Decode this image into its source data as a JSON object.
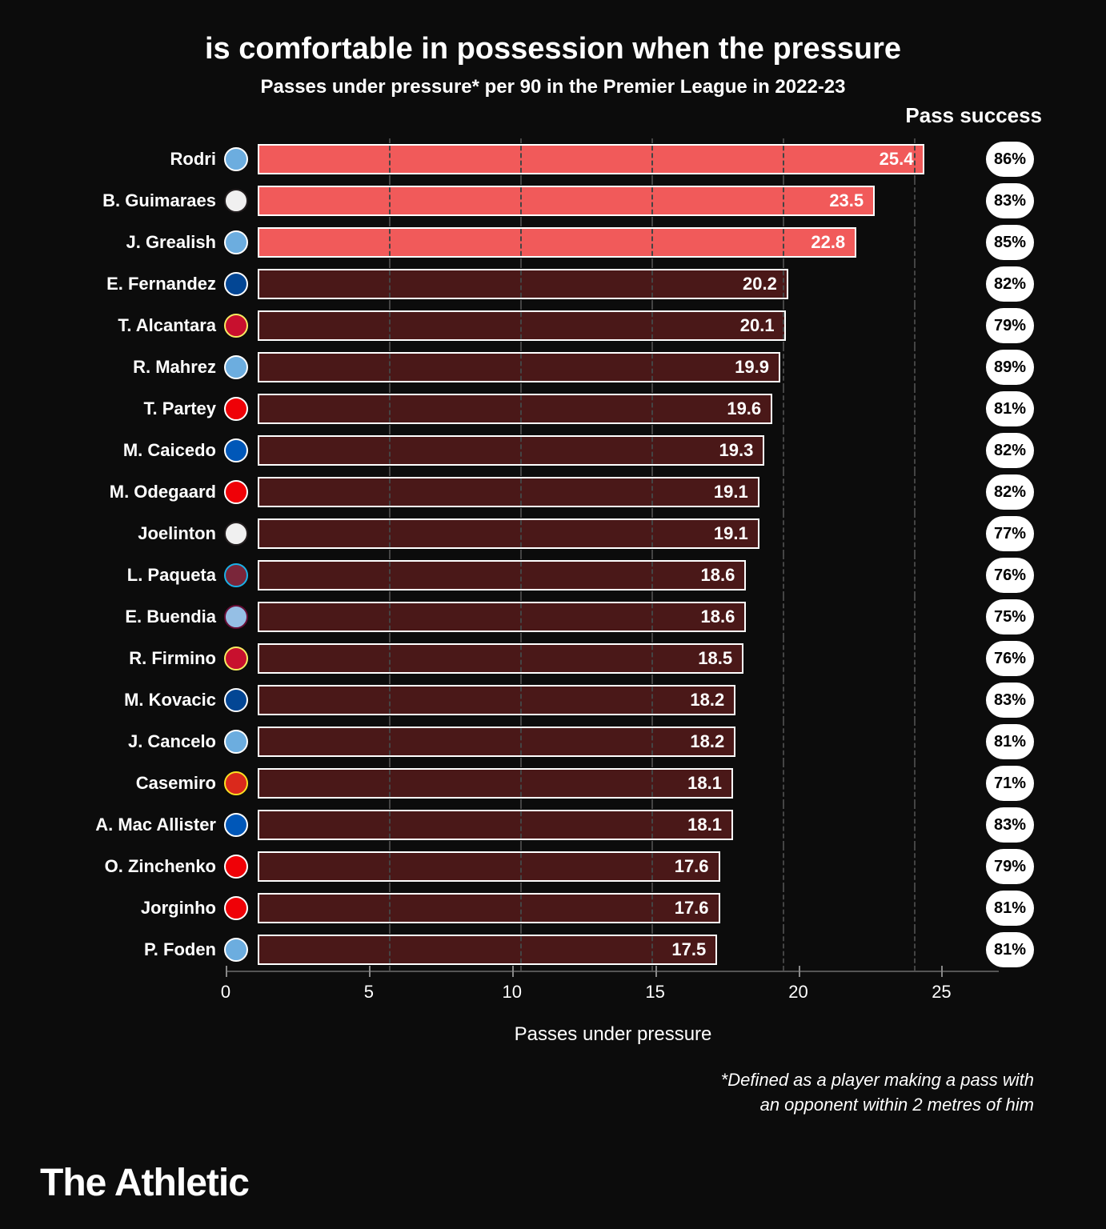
{
  "title": "is comfortable in possession when the pressure",
  "subtitle": "Passes under pressure* per 90 in the Premier League in 2022-23",
  "pass_success_header": "Pass success",
  "xlabel": "Passes under pressure",
  "footnote_l1": "*Defined as a player making a pass with",
  "footnote_l2": "an opponent within 2 metres of him",
  "brand": "The Athletic",
  "chart": {
    "type": "bar-horizontal",
    "xmax": 27,
    "ticks": [
      0,
      5,
      10,
      15,
      20,
      25
    ],
    "bar_border": "#ffffff",
    "highlight_color": "#f15a5a",
    "default_color": "#4a1818",
    "background": "#0c0c0c",
    "grid_color": "#444444",
    "pill_bg": "#ffffff",
    "pill_fg": "#000000",
    "label_fontsize": 22,
    "value_fontsize": 22
  },
  "players": [
    {
      "name": "Rodri",
      "value": 25.4,
      "success": "86%",
      "highlight": true,
      "badge_bg": "#6caddf",
      "badge_ring": "#ffffff"
    },
    {
      "name": "B. Guimaraes",
      "value": 23.5,
      "success": "83%",
      "highlight": true,
      "badge_bg": "#f0f0f0",
      "badge_ring": "#241f20"
    },
    {
      "name": "J. Grealish",
      "value": 22.8,
      "success": "85%",
      "highlight": true,
      "badge_bg": "#6caddf",
      "badge_ring": "#ffffff"
    },
    {
      "name": "E. Fernandez",
      "value": 20.2,
      "success": "82%",
      "highlight": false,
      "badge_bg": "#034694",
      "badge_ring": "#ffffff"
    },
    {
      "name": "T. Alcantara",
      "value": 20.1,
      "success": "79%",
      "highlight": false,
      "badge_bg": "#c8102e",
      "badge_ring": "#f6eb61"
    },
    {
      "name": "R. Mahrez",
      "value": 19.9,
      "success": "89%",
      "highlight": false,
      "badge_bg": "#6caddf",
      "badge_ring": "#ffffff"
    },
    {
      "name": "T. Partey",
      "value": 19.6,
      "success": "81%",
      "highlight": false,
      "badge_bg": "#ef0107",
      "badge_ring": "#ffffff"
    },
    {
      "name": "M. Caicedo",
      "value": 19.3,
      "success": "82%",
      "highlight": false,
      "badge_bg": "#0057b8",
      "badge_ring": "#ffffff"
    },
    {
      "name": "M. Odegaard",
      "value": 19.1,
      "success": "82%",
      "highlight": false,
      "badge_bg": "#ef0107",
      "badge_ring": "#ffffff"
    },
    {
      "name": "Joelinton",
      "value": 19.1,
      "success": "77%",
      "highlight": false,
      "badge_bg": "#f0f0f0",
      "badge_ring": "#241f20"
    },
    {
      "name": "L. Paqueta",
      "value": 18.6,
      "success": "76%",
      "highlight": false,
      "badge_bg": "#7a263a",
      "badge_ring": "#1bb1e7"
    },
    {
      "name": "E. Buendia",
      "value": 18.6,
      "success": "75%",
      "highlight": false,
      "badge_bg": "#95bfe5",
      "badge_ring": "#670e36"
    },
    {
      "name": "R. Firmino",
      "value": 18.5,
      "success": "76%",
      "highlight": false,
      "badge_bg": "#c8102e",
      "badge_ring": "#f6eb61"
    },
    {
      "name": "M. Kovacic",
      "value": 18.2,
      "success": "83%",
      "highlight": false,
      "badge_bg": "#034694",
      "badge_ring": "#ffffff"
    },
    {
      "name": "J. Cancelo",
      "value": 18.2,
      "success": "81%",
      "highlight": false,
      "badge_bg": "#6caddf",
      "badge_ring": "#ffffff"
    },
    {
      "name": "Casemiro",
      "value": 18.1,
      "success": "71%",
      "highlight": false,
      "badge_bg": "#da291c",
      "badge_ring": "#fbe122"
    },
    {
      "name": "A. Mac Allister",
      "value": 18.1,
      "success": "83%",
      "highlight": false,
      "badge_bg": "#0057b8",
      "badge_ring": "#ffffff"
    },
    {
      "name": "O. Zinchenko",
      "value": 17.6,
      "success": "79%",
      "highlight": false,
      "badge_bg": "#ef0107",
      "badge_ring": "#ffffff"
    },
    {
      "name": "Jorginho",
      "value": 17.6,
      "success": "81%",
      "highlight": false,
      "badge_bg": "#ef0107",
      "badge_ring": "#ffffff"
    },
    {
      "name": "P. Foden",
      "value": 17.5,
      "success": "81%",
      "highlight": false,
      "badge_bg": "#6caddf",
      "badge_ring": "#ffffff"
    }
  ]
}
